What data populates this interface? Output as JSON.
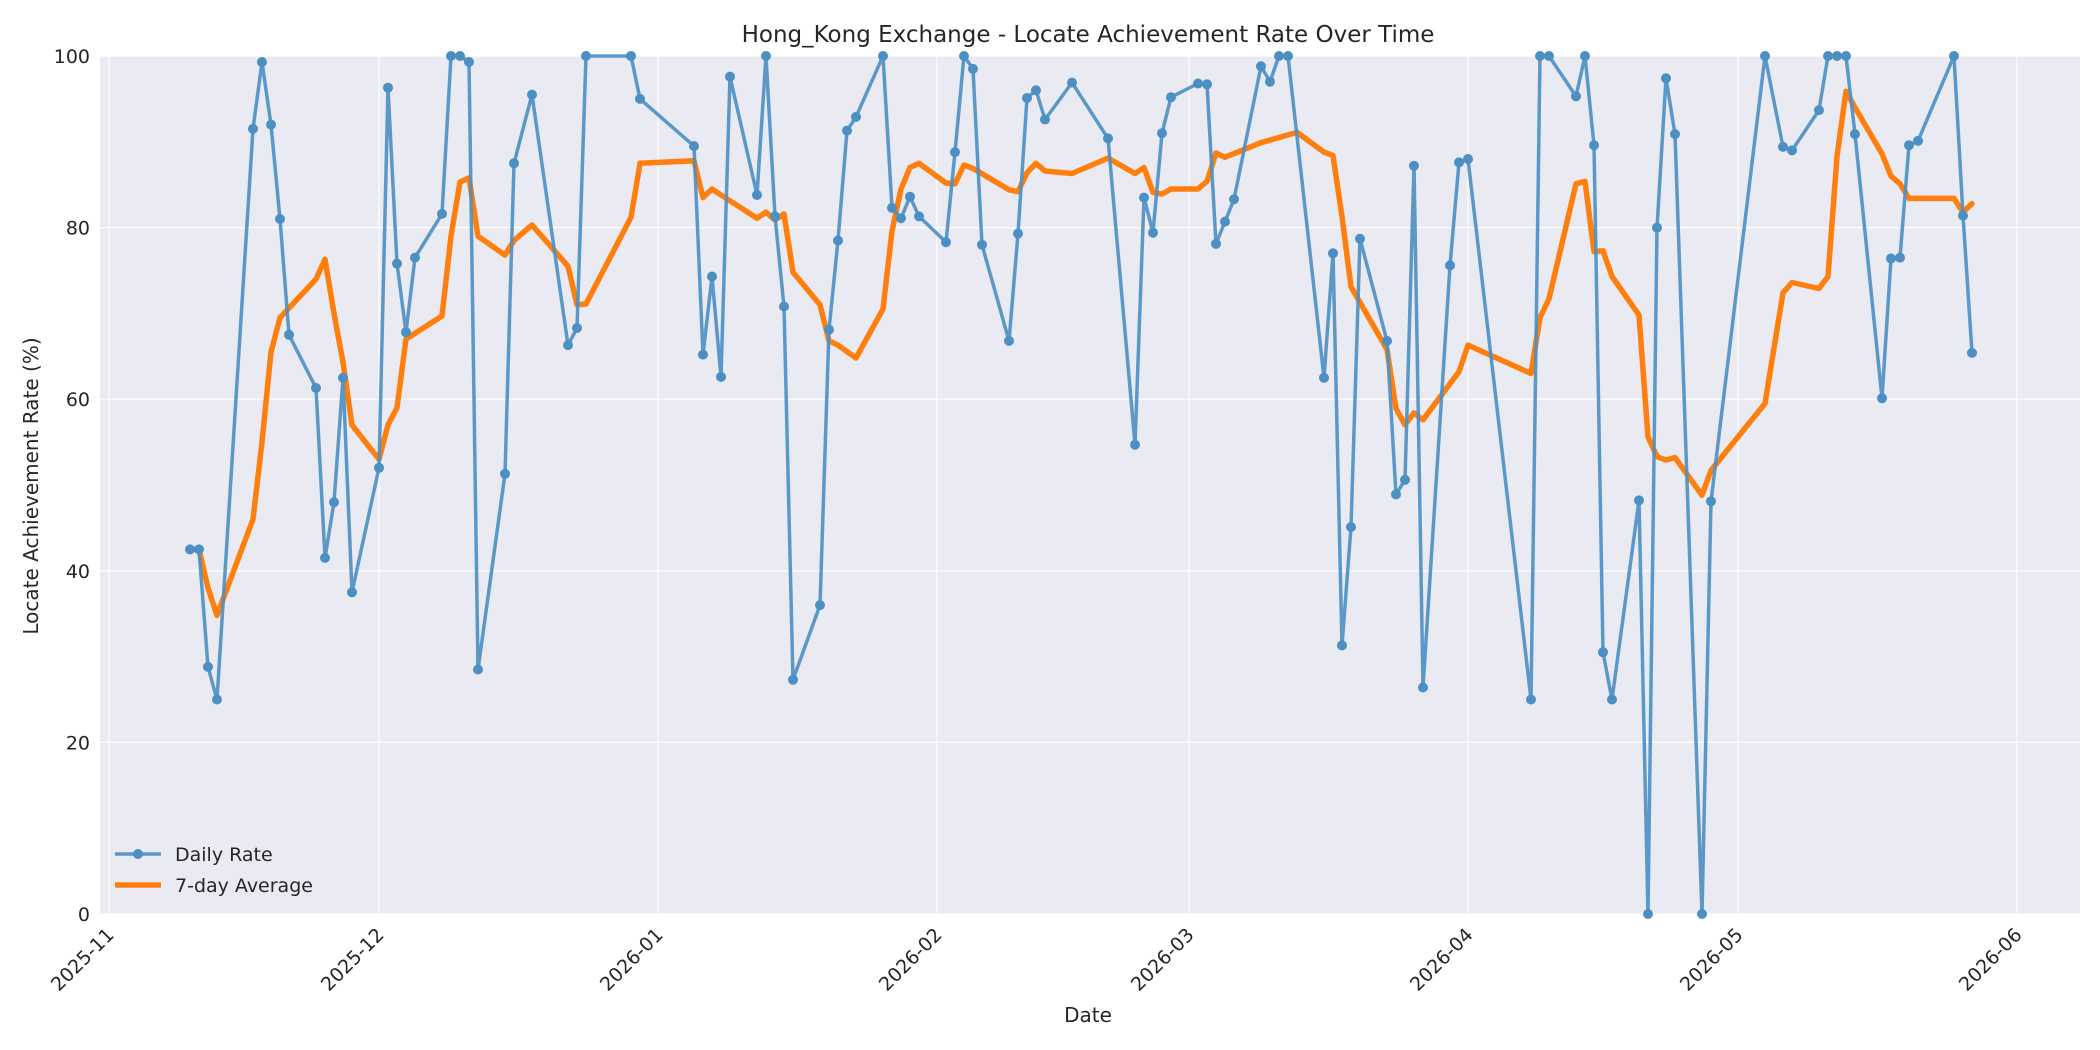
{
  "chart_data": {
    "type": "line",
    "title": "Hong_Kong Exchange - Locate Achievement Rate Over Time",
    "xlabel": "Date",
    "ylabel": "Locate Achievement Rate (%)",
    "xlim": [
      "2025-10-31",
      "2026-06-08"
    ],
    "ylim": [
      0,
      100
    ],
    "xticks": [
      "2025-11-01",
      "2025-12-01",
      "2026-01-01",
      "2026-02-01",
      "2026-03-01",
      "2026-04-01",
      "2026-05-01",
      "2026-06-01"
    ],
    "xtick_labels": [
      "2025-11",
      "2025-12",
      "2026-01",
      "2026-02",
      "2026-03",
      "2026-04",
      "2026-05",
      "2026-06"
    ],
    "yticks": [
      0,
      20,
      40,
      60,
      80,
      100
    ],
    "grid": true,
    "legend_position": "lower-left",
    "colors": {
      "background": "#eaeaf2",
      "daily": "#4c8fc2",
      "average": "#ff7f0e",
      "grid": "#ffffff"
    },
    "series": [
      {
        "name": "Daily Rate",
        "marker": "circle",
        "x": [
          "2025-11-10",
          "2025-11-11",
          "2025-11-12",
          "2025-11-13",
          "2025-11-17",
          "2025-11-18",
          "2025-11-19",
          "2025-11-20",
          "2025-11-21",
          "2025-11-24",
          "2025-11-25",
          "2025-11-26",
          "2025-11-27",
          "2025-11-28",
          "2025-12-01",
          "2025-12-02",
          "2025-12-03",
          "2025-12-04",
          "2025-12-05",
          "2025-12-08",
          "2025-12-09",
          "2025-12-10",
          "2025-12-11",
          "2025-12-12",
          "2025-12-15",
          "2025-12-16",
          "2025-12-18",
          "2025-12-22",
          "2025-12-23",
          "2025-12-24",
          "2025-12-29",
          "2025-12-30",
          "2026-01-05",
          "2026-01-06",
          "2026-01-07",
          "2026-01-08",
          "2026-01-09",
          "2026-01-12",
          "2026-01-13",
          "2026-01-14",
          "2026-01-15",
          "2026-01-16",
          "2026-01-19",
          "2026-01-20",
          "2026-01-21",
          "2026-01-22",
          "2026-01-23",
          "2026-01-26",
          "2026-01-27",
          "2026-01-28",
          "2026-01-29",
          "2026-01-30",
          "2026-02-02",
          "2026-02-03",
          "2026-02-04",
          "2026-02-05",
          "2026-02-06",
          "2026-02-09",
          "2026-02-10",
          "2026-02-11",
          "2026-02-12",
          "2026-02-13",
          "2026-02-16",
          "2026-02-20",
          "2026-02-23",
          "2026-02-24",
          "2026-02-25",
          "2026-02-26",
          "2026-02-27",
          "2026-03-02",
          "2026-03-03",
          "2026-03-04",
          "2026-03-05",
          "2026-03-06",
          "2026-03-09",
          "2026-03-10",
          "2026-03-11",
          "2026-03-12",
          "2026-03-16",
          "2026-03-17",
          "2026-03-18",
          "2026-03-19",
          "2026-03-20",
          "2026-03-23",
          "2026-03-24",
          "2026-03-25",
          "2026-03-26",
          "2026-03-27",
          "2026-03-30",
          "2026-03-31",
          "2026-04-01",
          "2026-04-08",
          "2026-04-09",
          "2026-04-10",
          "2026-04-13",
          "2026-04-14",
          "2026-04-15",
          "2026-04-16",
          "2026-04-17",
          "2026-04-20",
          "2026-04-21",
          "2026-04-22",
          "2026-04-23",
          "2026-04-24",
          "2026-04-27",
          "2026-04-28",
          "2026-05-04",
          "2026-05-06",
          "2026-05-07",
          "2026-05-10",
          "2026-05-11",
          "2026-05-12",
          "2026-05-13",
          "2026-05-14",
          "2026-05-17",
          "2026-05-18",
          "2026-05-19",
          "2026-05-20",
          "2026-05-21",
          "2026-05-25",
          "2026-05-26",
          "2026-05-27"
        ],
        "values": [
          42.5,
          42.5,
          28.8,
          25.0,
          91.5,
          99.3,
          92.0,
          81.0,
          67.5,
          61.3,
          41.5,
          48.0,
          62.5,
          37.5,
          52.0,
          96.3,
          75.8,
          67.8,
          76.5,
          81.6,
          100,
          100,
          99.3,
          28.5,
          51.3,
          87.5,
          95.5,
          66.3,
          68.3,
          100,
          100,
          95.0,
          89.5,
          65.2,
          74.3,
          62.6,
          97.6,
          83.8,
          100,
          81.3,
          70.8,
          27.3,
          36.0,
          68.1,
          78.5,
          91.3,
          92.9,
          100,
          82.3,
          81.1,
          83.6,
          81.3,
          78.3,
          88.8,
          100,
          98.5,
          78.0,
          66.8,
          79.3,
          95.1,
          96.0,
          92.6,
          96.9,
          90.4,
          54.7,
          83.5,
          79.4,
          91.0,
          95.2,
          96.8,
          96.7,
          78.1,
          80.7,
          83.3,
          98.8,
          97.0,
          100,
          100,
          62.5,
          77.0,
          31.3,
          45.1,
          78.7,
          66.8,
          48.9,
          50.6,
          87.2,
          26.4,
          75.6,
          87.6,
          88.0,
          25.0,
          100,
          100,
          95.3,
          100,
          89.6,
          30.5,
          25.0,
          48.2,
          0,
          80.0,
          97.4,
          90.9,
          0,
          48.1,
          100,
          89.4,
          89.0,
          93.7,
          100,
          100,
          100,
          90.9,
          60.1,
          76.4,
          76.5,
          89.6,
          90.1,
          100,
          81.4,
          65.4
        ]
      },
      {
        "name": "7-day Average",
        "x": [
          "2025-11-10",
          "2025-11-11",
          "2025-11-12",
          "2025-11-13",
          "2025-11-17",
          "2025-11-18",
          "2025-11-19",
          "2025-11-20",
          "2025-11-24",
          "2025-11-25",
          "2025-11-26",
          "2025-11-27",
          "2025-11-28",
          "2025-12-01",
          "2025-12-02",
          "2025-12-03",
          "2025-12-04",
          "2025-12-08",
          "2025-12-09",
          "2025-12-10",
          "2025-12-11",
          "2025-12-12",
          "2025-12-15",
          "2025-12-16",
          "2025-12-18",
          "2025-12-22",
          "2025-12-23",
          "2025-12-24",
          "2025-12-29",
          "2025-12-30",
          "2026-01-05",
          "2026-01-06",
          "2026-01-07",
          "2026-01-08",
          "2026-01-12",
          "2026-01-13",
          "2026-01-14",
          "2026-01-15",
          "2026-01-16",
          "2026-01-19",
          "2026-01-20",
          "2026-01-21",
          "2026-01-23",
          "2026-01-26",
          "2026-01-27",
          "2026-01-28",
          "2026-01-29",
          "2026-01-30",
          "2026-02-02",
          "2026-02-03",
          "2026-02-04",
          "2026-02-05",
          "2026-02-09",
          "2026-02-10",
          "2026-02-11",
          "2026-02-12",
          "2026-02-13",
          "2026-02-16",
          "2026-02-20",
          "2026-02-23",
          "2026-02-24",
          "2026-02-25",
          "2026-02-26",
          "2026-02-27",
          "2026-03-02",
          "2026-03-03",
          "2026-03-04",
          "2026-03-05",
          "2026-03-09",
          "2026-03-12",
          "2026-03-13",
          "2026-03-16",
          "2026-03-17",
          "2026-03-18",
          "2026-03-19",
          "2026-03-23",
          "2026-03-24",
          "2026-03-25",
          "2026-03-26",
          "2026-03-27",
          "2026-03-31",
          "2026-04-01",
          "2026-04-08",
          "2026-04-09",
          "2026-04-10",
          "2026-04-13",
          "2026-04-14",
          "2026-04-15",
          "2026-04-16",
          "2026-04-17",
          "2026-04-20",
          "2026-04-21",
          "2026-04-22",
          "2026-04-23",
          "2026-04-24",
          "2026-04-27",
          "2026-04-28",
          "2026-05-04",
          "2026-05-06",
          "2026-05-07",
          "2026-05-10",
          "2026-05-11",
          "2026-05-12",
          "2026-05-13",
          "2026-05-14",
          "2026-05-17",
          "2026-05-18",
          "2026-05-19",
          "2026-05-20",
          "2026-05-21",
          "2026-05-25",
          "2026-05-26",
          "2026-05-27"
        ],
        "values": [
          42.5,
          42.5,
          38.0,
          34.8,
          46.0,
          55.0,
          65.5,
          69.5,
          74.0,
          76.3,
          70.0,
          64.3,
          57.0,
          53.0,
          57.0,
          59.0,
          67.0,
          69.7,
          79.0,
          85.3,
          85.8,
          79.0,
          76.8,
          78.5,
          80.3,
          75.5,
          71.0,
          71.1,
          81.2,
          87.5,
          87.8,
          83.5,
          84.5,
          83.8,
          81.1,
          81.8,
          80.9,
          81.6,
          74.8,
          71.0,
          66.8,
          66.3,
          64.8,
          70.5,
          79.6,
          84.5,
          87.0,
          87.5,
          85.2,
          85.1,
          87.3,
          86.9,
          84.4,
          84.2,
          86.4,
          87.5,
          86.6,
          86.3,
          88.1,
          86.3,
          87.0,
          84.1,
          83.9,
          84.5,
          84.5,
          85.4,
          88.7,
          88.2,
          89.9,
          90.8,
          91.1,
          88.8,
          88.4,
          81.3,
          73.1,
          65.8,
          58.9,
          57.0,
          58.4,
          57.6,
          63.2,
          66.3,
          63.0,
          69.5,
          71.7,
          85.1,
          85.4,
          77.2,
          77.3,
          74.3,
          69.8,
          55.6,
          53.3,
          52.9,
          53.2,
          48.8,
          51.7,
          59.5,
          72.4,
          73.6,
          72.9,
          74.3,
          88.3,
          95.9,
          94.0,
          88.6,
          86.0,
          85.1,
          83.4,
          83.4,
          83.4,
          81.8,
          82.8
        ]
      }
    ]
  }
}
